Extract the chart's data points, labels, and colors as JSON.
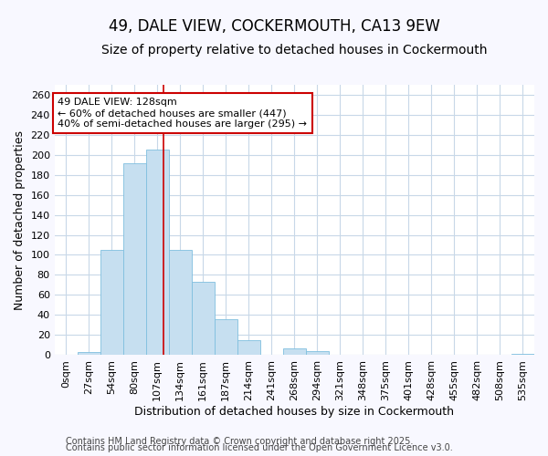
{
  "title": "49, DALE VIEW, COCKERMOUTH, CA13 9EW",
  "subtitle": "Size of property relative to detached houses in Cockermouth",
  "xlabel": "Distribution of detached houses by size in Cockermouth",
  "ylabel": "Number of detached properties",
  "bin_labels": [
    "0sqm",
    "27sqm",
    "54sqm",
    "80sqm",
    "107sqm",
    "134sqm",
    "161sqm",
    "187sqm",
    "214sqm",
    "241sqm",
    "268sqm",
    "294sqm",
    "321sqm",
    "348sqm",
    "375sqm",
    "401sqm",
    "428sqm",
    "455sqm",
    "482sqm",
    "508sqm",
    "535sqm"
  ],
  "bar_values": [
    0,
    3,
    105,
    192,
    205,
    105,
    73,
    36,
    15,
    0,
    6,
    4,
    0,
    0,
    0,
    0,
    0,
    0,
    0,
    0,
    1
  ],
  "bar_color": "#c6dff0",
  "bar_edge_color": "#7fbfdf",
  "vline_color": "#cc0000",
  "ylim": [
    0,
    270
  ],
  "yticks": [
    0,
    20,
    40,
    60,
    80,
    100,
    120,
    140,
    160,
    180,
    200,
    220,
    240,
    260
  ],
  "annotation_line1": "49 DALE VIEW: 128sqm",
  "annotation_line2": "← 60% of detached houses are smaller (447)",
  "annotation_line3": "40% of semi-detached houses are larger (295) →",
  "annotation_box_facecolor": "#ffffff",
  "annotation_box_edgecolor": "#cc0000",
  "footer_line1": "Contains HM Land Registry data © Crown copyright and database right 2025.",
  "footer_line2": "Contains public sector information licensed under the Open Government Licence v3.0.",
  "fig_bg_color": "#f8f8ff",
  "plot_bg_color": "#ffffff",
  "grid_color": "#c8d8e8",
  "title_fontsize": 12,
  "subtitle_fontsize": 10,
  "axis_label_fontsize": 9,
  "tick_fontsize": 8,
  "annotation_fontsize": 8,
  "footer_fontsize": 7
}
